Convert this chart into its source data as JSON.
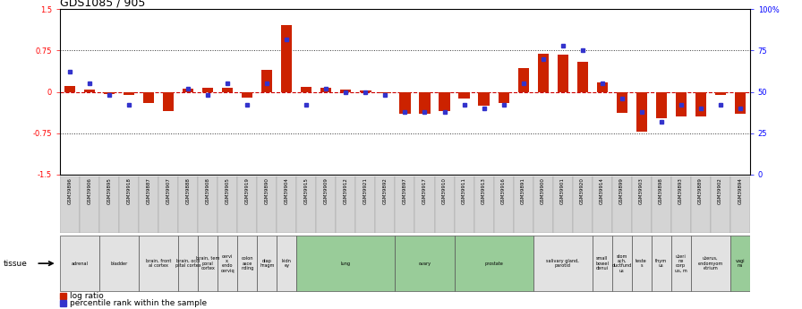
{
  "title": "GDS1085 / 905",
  "samples": [
    "GSM39896",
    "GSM39906",
    "GSM39895",
    "GSM39918",
    "GSM39887",
    "GSM39907",
    "GSM39888",
    "GSM39908",
    "GSM39905",
    "GSM39919",
    "GSM39890",
    "GSM39904",
    "GSM39915",
    "GSM39909",
    "GSM39912",
    "GSM39921",
    "GSM39892",
    "GSM39897",
    "GSM39917",
    "GSM39910",
    "GSM39911",
    "GSM39913",
    "GSM39916",
    "GSM39891",
    "GSM39900",
    "GSM39901",
    "GSM39920",
    "GSM39914",
    "GSM39899",
    "GSM39903",
    "GSM39898",
    "GSM39893",
    "GSM39889",
    "GSM39902",
    "GSM39894"
  ],
  "log_ratio": [
    0.1,
    0.05,
    -0.04,
    -0.06,
    -0.2,
    -0.35,
    0.06,
    0.08,
    0.08,
    -0.1,
    0.4,
    1.22,
    0.09,
    0.07,
    0.04,
    0.03,
    -0.03,
    -0.4,
    -0.4,
    -0.35,
    -0.12,
    -0.25,
    -0.2,
    0.44,
    0.7,
    0.68,
    0.54,
    0.18,
    -0.38,
    -0.72,
    -0.48,
    -0.44,
    -0.44,
    -0.06,
    -0.4
  ],
  "percentile_rank": [
    62,
    55,
    48,
    42,
    null,
    null,
    52,
    48,
    55,
    42,
    55,
    82,
    42,
    52,
    50,
    50,
    48,
    38,
    38,
    38,
    42,
    40,
    42,
    55,
    70,
    78,
    75,
    55,
    46,
    38,
    32,
    42,
    40,
    42,
    40
  ],
  "tissue_groups": [
    {
      "label": "adrenal",
      "start": 0,
      "end": 2,
      "light": false
    },
    {
      "label": "bladder",
      "start": 2,
      "end": 4,
      "light": false
    },
    {
      "label": "brain, front\nal cortex",
      "start": 4,
      "end": 6,
      "light": false
    },
    {
      "label": "brain, occi\npital cortex",
      "start": 6,
      "end": 7,
      "light": false
    },
    {
      "label": "brain, tem\nporal\ncortex",
      "start": 7,
      "end": 8,
      "light": false
    },
    {
      "label": "cervi\nx,\nendo\ncerviq",
      "start": 8,
      "end": 9,
      "light": false
    },
    {
      "label": "colon\nasce\nnding",
      "start": 9,
      "end": 10,
      "light": false
    },
    {
      "label": "diap\nhragm",
      "start": 10,
      "end": 11,
      "light": false
    },
    {
      "label": "kidn\ney",
      "start": 11,
      "end": 12,
      "light": false
    },
    {
      "label": "lung",
      "start": 12,
      "end": 17,
      "light": true
    },
    {
      "label": "ovary",
      "start": 17,
      "end": 20,
      "light": true
    },
    {
      "label": "prostate",
      "start": 20,
      "end": 24,
      "light": true
    },
    {
      "label": "salivary gland,\nparotid",
      "start": 24,
      "end": 27,
      "light": false
    },
    {
      "label": "small\nbowel\ndenui",
      "start": 27,
      "end": 28,
      "light": false
    },
    {
      "label": "stom\nach,\nductfund\nus",
      "start": 28,
      "end": 29,
      "light": false
    },
    {
      "label": "teste\ns",
      "start": 29,
      "end": 30,
      "light": false
    },
    {
      "label": "thym\nus",
      "start": 30,
      "end": 31,
      "light": false
    },
    {
      "label": "uteri\nne\ncorp\nus, m",
      "start": 31,
      "end": 32,
      "light": false
    },
    {
      "label": "uterus,\nendomyom\netrium",
      "start": 32,
      "end": 34,
      "light": false
    },
    {
      "label": "vagi\nna",
      "start": 34,
      "end": 35,
      "light": true
    }
  ],
  "ylim": [
    -1.5,
    1.5
  ],
  "bar_color": "#cc2200",
  "dot_color": "#3333cc",
  "tissue_bg_light": "#99cc99",
  "tissue_bg_dark": "#dddddd",
  "bar_width": 0.55
}
